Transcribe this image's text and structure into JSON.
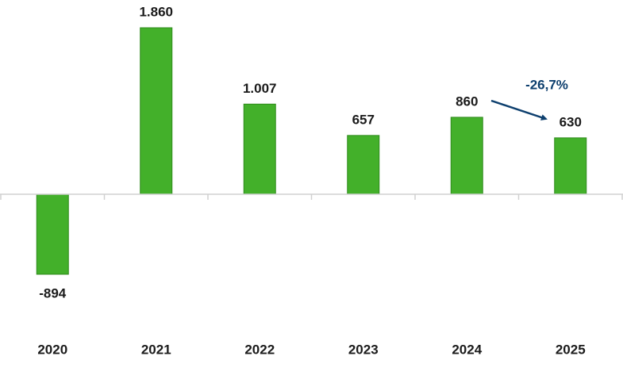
{
  "chart_data": {
    "type": "bar",
    "categories": [
      "2020",
      "2021",
      "2022",
      "2023",
      "2024",
      "2025"
    ],
    "values": [
      -894,
      1860,
      1007,
      657,
      860,
      630
    ],
    "value_labels": [
      "-894",
      "1.860",
      "1.007",
      "657",
      "860",
      "630"
    ],
    "color": "#43b02a",
    "annotation": "-26,7%"
  }
}
